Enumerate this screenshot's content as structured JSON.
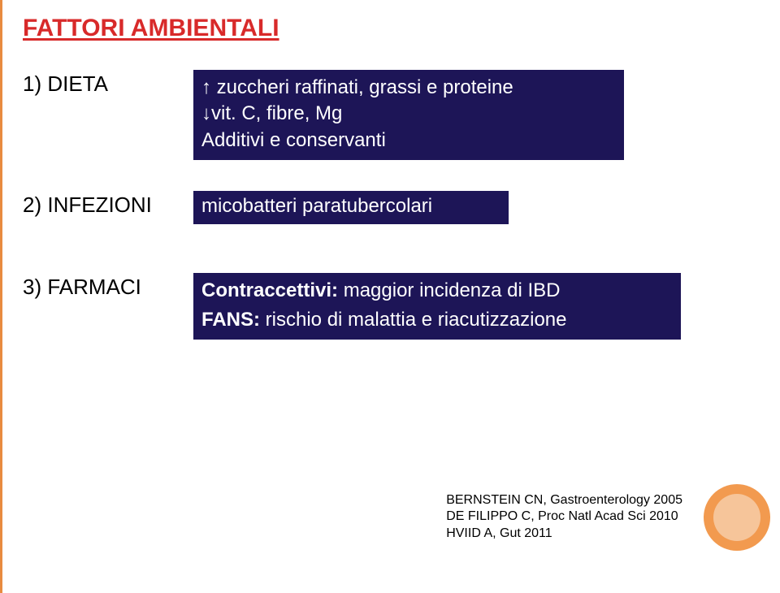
{
  "title": "FATTORI AMBIENTALI",
  "rows": {
    "r1": {
      "label": "1)  DIETA",
      "box": {
        "lines": [
          {
            "arrow": "↑",
            "text": " zuccheri raffinati, grassi e proteine"
          },
          {
            "arrow": "↓",
            "text": "vit. C, fibre, Mg"
          },
          {
            "arrow": "",
            "text": "Additivi e conservanti"
          }
        ]
      }
    },
    "r2": {
      "label": "2)   INFEZIONI",
      "box": {
        "text": "micobatteri paratubercolari"
      }
    },
    "r3": {
      "label": "3)  FARMACI",
      "box": {
        "lines": [
          {
            "boldLabel": "Contraccettivi:",
            "rest": " maggior incidenza di IBD"
          },
          {
            "boldLabel": "FANS:",
            "rest": " rischio di malattia e riacutizzazione"
          }
        ]
      }
    }
  },
  "citations": [
    "BERNSTEIN CN, Gastroenterology 2005",
    "DE FILIPPO C, Proc Natl Acad Sci 2010",
    "HVIID A, Gut 2011"
  ],
  "colors": {
    "title": "#d82a2a",
    "box_bg": "#1d1557",
    "box_text": "#ffffff",
    "accent_line": "#e88b3f",
    "circle_outer": "#f29a4f",
    "circle_inner": "#f6c59a"
  }
}
